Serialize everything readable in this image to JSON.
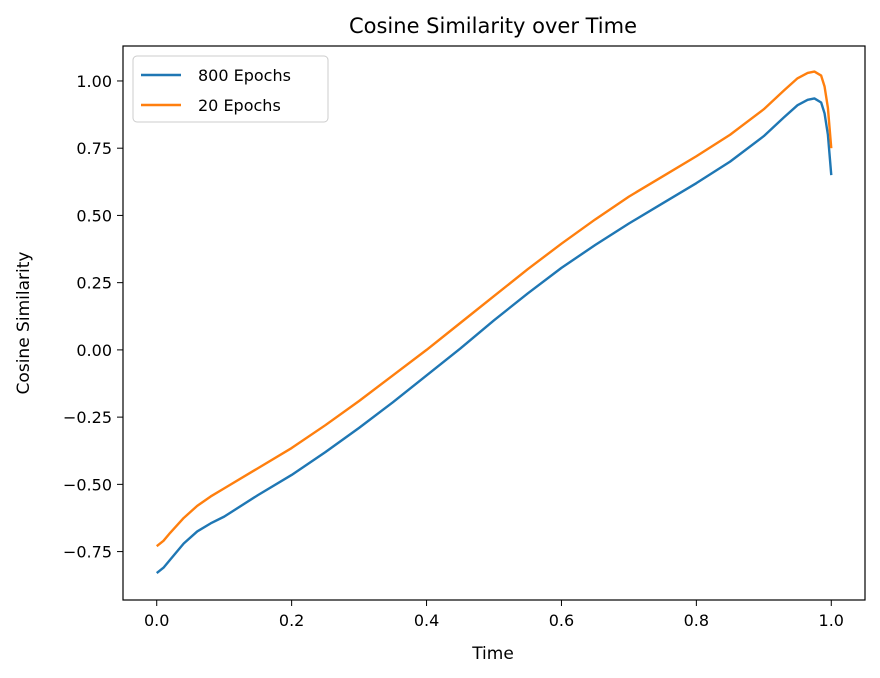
{
  "chart_data": {
    "type": "line",
    "title": "Cosine Similarity over Time",
    "xlabel": "Time",
    "ylabel": "Cosine Similarity",
    "xlim": [
      -0.05,
      1.05
    ],
    "ylim": [
      -0.93,
      1.13
    ],
    "xticks": [
      0.0,
      0.2,
      0.4,
      0.6,
      0.8,
      1.0
    ],
    "xtick_labels": [
      "0.0",
      "0.2",
      "0.4",
      "0.6",
      "0.8",
      "1.0"
    ],
    "yticks": [
      -0.75,
      -0.5,
      -0.25,
      0.0,
      0.25,
      0.5,
      0.75,
      1.0
    ],
    "ytick_labels": [
      "−0.75",
      "−0.50",
      "−0.25",
      "0.00",
      "0.25",
      "0.50",
      "0.75",
      "1.00"
    ],
    "grid": false,
    "legend_position": "top-left",
    "series": [
      {
        "name": "800 Epochs",
        "color": "#1f77b4",
        "x": [
          0.0,
          0.01,
          0.02,
          0.04,
          0.06,
          0.08,
          0.1,
          0.15,
          0.2,
          0.25,
          0.3,
          0.35,
          0.4,
          0.45,
          0.5,
          0.55,
          0.6,
          0.65,
          0.7,
          0.75,
          0.8,
          0.85,
          0.9,
          0.93,
          0.95,
          0.965,
          0.975,
          0.985,
          0.99,
          0.995,
          1.0
        ],
        "y": [
          -0.83,
          -0.81,
          -0.78,
          -0.72,
          -0.675,
          -0.645,
          -0.62,
          -0.54,
          -0.465,
          -0.38,
          -0.29,
          -0.195,
          -0.095,
          0.005,
          0.11,
          0.21,
          0.305,
          0.39,
          0.47,
          0.545,
          0.62,
          0.7,
          0.795,
          0.865,
          0.91,
          0.93,
          0.935,
          0.92,
          0.88,
          0.8,
          0.65
        ]
      },
      {
        "name": "20 Epochs",
        "color": "#ff7f0e",
        "x": [
          0.0,
          0.01,
          0.02,
          0.04,
          0.06,
          0.08,
          0.1,
          0.15,
          0.2,
          0.25,
          0.3,
          0.35,
          0.4,
          0.45,
          0.5,
          0.55,
          0.6,
          0.65,
          0.7,
          0.75,
          0.8,
          0.85,
          0.9,
          0.93,
          0.95,
          0.965,
          0.975,
          0.985,
          0.99,
          0.995,
          1.0
        ],
        "y": [
          -0.73,
          -0.71,
          -0.68,
          -0.625,
          -0.58,
          -0.545,
          -0.515,
          -0.44,
          -0.365,
          -0.28,
          -0.19,
          -0.095,
          0.0,
          0.1,
          0.2,
          0.3,
          0.395,
          0.485,
          0.57,
          0.645,
          0.72,
          0.8,
          0.895,
          0.965,
          1.01,
          1.03,
          1.035,
          1.02,
          0.98,
          0.9,
          0.75
        ]
      }
    ]
  }
}
